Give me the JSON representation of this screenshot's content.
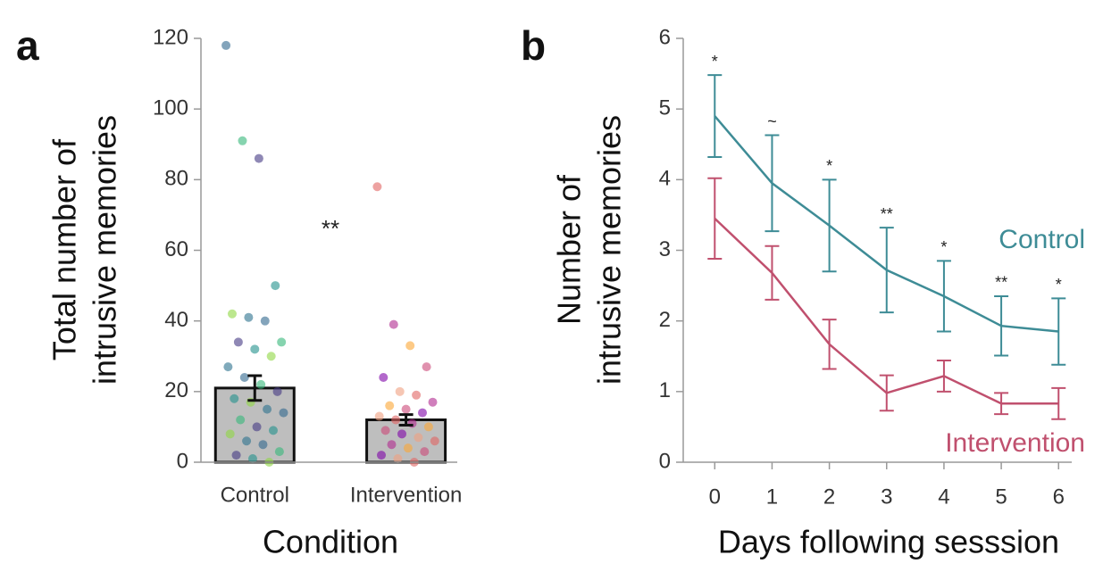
{
  "chart_data": [
    {
      "type": "bar",
      "panel": "a",
      "ylabel": [
        "Total number of",
        "intrusive memories"
      ],
      "xlabel": "Condition",
      "categories": [
        "Control",
        "Intervention"
      ],
      "values": [
        21,
        12
      ],
      "errors": [
        3.5,
        1.5
      ],
      "color": "#bebebe",
      "points": [
        [
          118,
          91,
          86,
          50,
          42,
          41,
          40,
          34,
          34,
          32,
          30,
          27,
          24,
          22,
          20,
          18,
          17,
          15,
          14,
          12,
          10,
          9,
          8,
          6,
          5,
          3,
          2,
          1,
          0
        ],
        [
          78,
          39,
          33,
          27,
          24,
          20,
          19,
          17,
          16,
          15,
          14,
          13,
          12,
          11,
          10,
          9,
          8,
          7,
          6,
          5,
          4,
          3,
          2,
          1,
          0
        ]
      ],
      "point_palettes": [
        [
          "#31688e",
          "#35b779",
          "#443983",
          "#21918c",
          "#90d743",
          "#2c728e"
        ],
        [
          "#e16462",
          "#b12a90",
          "#fca636",
          "#cc4778",
          "#7e03a8",
          "#f0a080"
        ]
      ],
      "annotation": "**",
      "ylim": [
        0,
        120
      ],
      "yticks": [
        0,
        20,
        40,
        60,
        80,
        100,
        120
      ]
    },
    {
      "type": "line",
      "panel": "b",
      "ylabel": [
        "Number of",
        "intrusive memories"
      ],
      "xlabel": "Days following sesssion",
      "x": [
        0,
        1,
        2,
        3,
        4,
        5,
        6
      ],
      "series": [
        {
          "name": "Control",
          "color": "#3e8c96",
          "values": [
            4.9,
            3.95,
            3.35,
            2.72,
            2.35,
            1.93,
            1.85
          ],
          "errors": [
            0.58,
            0.68,
            0.65,
            0.6,
            0.5,
            0.42,
            0.47
          ]
        },
        {
          "name": "Intervention",
          "color": "#c0506e",
          "values": [
            3.45,
            2.68,
            1.67,
            0.98,
            1.22,
            0.83,
            0.83
          ],
          "errors": [
            0.57,
            0.38,
            0.35,
            0.25,
            0.22,
            0.15,
            0.22
          ]
        }
      ],
      "significance": [
        "*",
        "~",
        "*",
        "**",
        "*",
        "**",
        "*"
      ],
      "xlim": [
        -0.55,
        6.23
      ],
      "xticks": [
        0,
        1,
        2,
        3,
        4,
        5,
        6
      ],
      "ylim": [
        0,
        6
      ],
      "yticks": [
        0,
        1,
        2,
        3,
        4,
        5,
        6
      ]
    }
  ]
}
